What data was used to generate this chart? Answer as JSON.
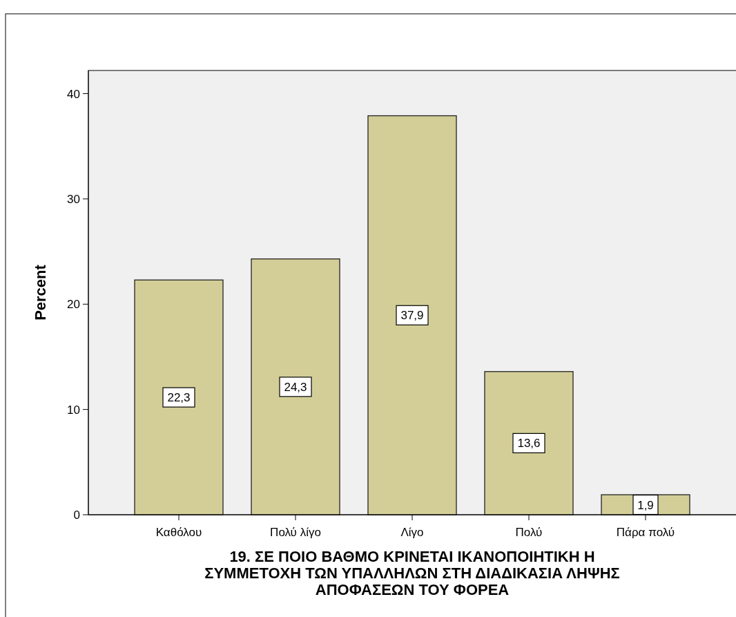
{
  "chart_data": {
    "type": "bar",
    "ylabel": "Percent",
    "xlabel": "19. ΣΕ ΠΟΙΟ ΒΑΘΜΟ ΚΡΙΝΕΤΑΙ ΙΚΑΝΟΠΟΙΗΤΙΚΗ Η ΣΥΜΜΕΤΟΧΗ ΤΩΝ ΥΠΑΛΛΗΛΩΝ ΣΤΗ ΔΙΑΔΙΚΑΣΙΑ ΛΗΨΗΣ ΑΠΟΦΑΣΕΩΝ ΤΟΥ ΦΟΡΕΑ",
    "categories": [
      "Καθόλου",
      "Πολύ λίγο",
      "Λίγο",
      "Πολύ",
      "Πάρα πολύ"
    ],
    "values": [
      22.3,
      24.3,
      37.9,
      13.6,
      1.9
    ],
    "value_labels": [
      "22,3",
      "24,3",
      "37,9",
      "13,6",
      "1,9"
    ],
    "color": "#d3ce97",
    "ylim": [
      0,
      42.2
    ],
    "yticks": [
      0,
      10,
      20,
      30,
      40
    ]
  }
}
